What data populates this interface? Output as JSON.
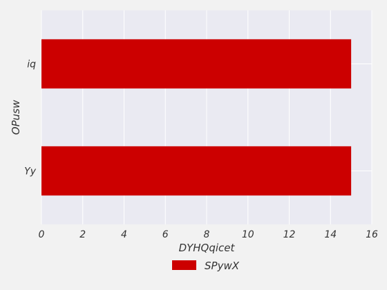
{
  "colors": {
    "page_background": "#f2f2f2",
    "plot_background": "#eaeaf2",
    "grid": "#ffffff",
    "series_1": "#cc0000",
    "text": "#333333"
  },
  "chart_data": {
    "type": "bar",
    "orientation": "horizontal",
    "categories": [
      "Yy",
      "iq"
    ],
    "series": [
      {
        "name": "SPywX",
        "values": [
          15,
          15
        ]
      }
    ],
    "xlabel": "DYHQqicet",
    "ylabel": "OPusw",
    "xlim": [
      0,
      16
    ],
    "x_ticks": [
      "0",
      "2",
      "4",
      "6",
      "8",
      "10",
      "12",
      "14",
      "16"
    ],
    "grid": true,
    "legend_position": "bottom-center"
  }
}
